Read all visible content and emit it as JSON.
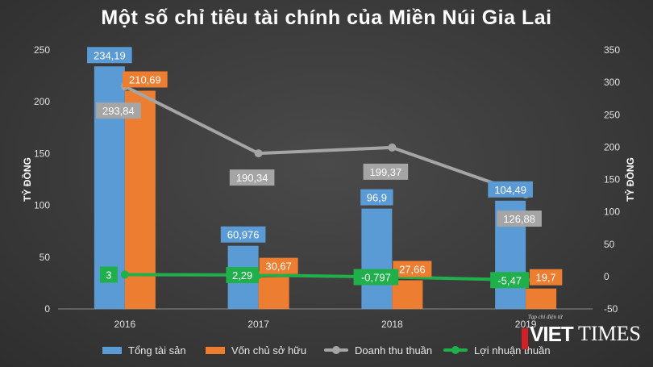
{
  "chart_data": {
    "type": "bar",
    "title": "Một số chỉ tiêu tài chính của Miền Núi Gia Lai",
    "categories": [
      "2016",
      "2017",
      "2018",
      "2019"
    ],
    "y_left": {
      "label": "TỶ ĐỒNG",
      "ylim": [
        0,
        250
      ],
      "ticks": [
        "0",
        "50",
        "100",
        "150",
        "200",
        "250"
      ]
    },
    "y_right": {
      "label": "TỶ ĐỒNG",
      "ylim": [
        -50,
        350
      ],
      "ticks": [
        "-50",
        "0",
        "50",
        "100",
        "150",
        "200",
        "250",
        "300",
        "350"
      ]
    },
    "series": [
      {
        "name": "Tổng tài sản",
        "type": "bar",
        "axis": "left",
        "color": "#5b9bd5",
        "values": [
          234.19,
          60.976,
          96.9,
          104.49
        ],
        "labels": [
          "234,19",
          "60,976",
          "96,9",
          "104,49"
        ]
      },
      {
        "name": "Vốn chủ sở hữu",
        "type": "bar",
        "axis": "left",
        "color": "#ed7d31",
        "values": [
          210.69,
          30.67,
          27.66,
          19.7
        ],
        "labels": [
          "210,69",
          "30,67",
          "27,66",
          "19,7"
        ]
      },
      {
        "name": "Doanh thu thuần",
        "type": "line",
        "axis": "right",
        "color": "#a5a5a5",
        "values": [
          293.84,
          190.34,
          199.37,
          126.88
        ],
        "labels": [
          "293,84",
          "190,34",
          "199,37",
          "126,88"
        ]
      },
      {
        "name": "Lợi nhuận thuần",
        "type": "line",
        "axis": "right",
        "color": "#1fb04b",
        "values": [
          3,
          2.29,
          -0.797,
          -5.47
        ],
        "labels": [
          "3",
          "2,29",
          "-0,797",
          "-5,47"
        ]
      }
    ],
    "legend_position": "bottom",
    "grid": true
  },
  "watermark": {
    "tagline": "Tạp chí điện tử",
    "brand_left": "VIET",
    "brand_right": "TIMES"
  }
}
